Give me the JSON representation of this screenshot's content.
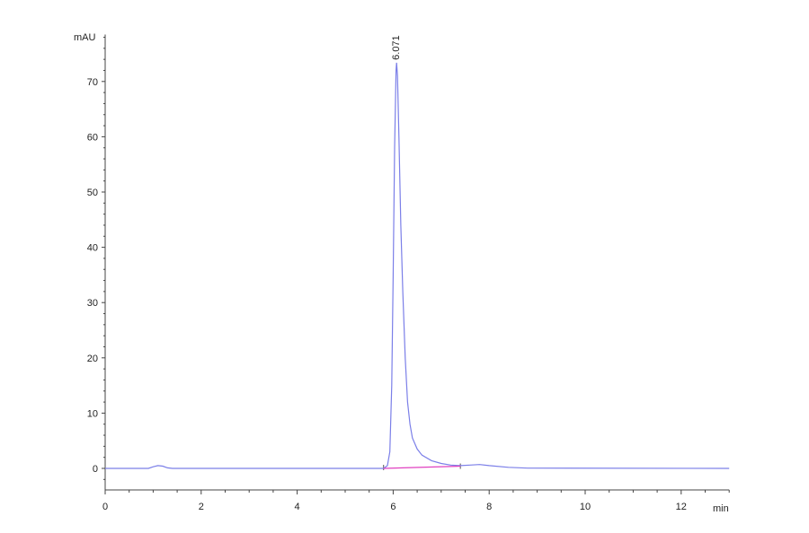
{
  "chart_data": {
    "type": "line",
    "title": "",
    "xlabel": "min",
    "ylabel": "mAU",
    "xlim": [
      0,
      13
    ],
    "ylim": [
      -3.9,
      78.5
    ],
    "x_ticks": [
      0,
      2,
      4,
      6,
      8,
      10,
      12
    ],
    "y_ticks": [
      0,
      10,
      20,
      30,
      40,
      50,
      60,
      70
    ],
    "grid": false,
    "legend": "none",
    "colors": {
      "trace": "#7b7fe8",
      "baseline": "#e040c0",
      "axis": "#444444"
    },
    "peak_annotations": [
      {
        "x": 6.071,
        "y": 73.4,
        "label": "6.071"
      }
    ],
    "integration_baseline": {
      "x": [
        5.8,
        7.4
      ],
      "y": [
        0,
        0.4
      ]
    },
    "series": [
      {
        "x": [
          0,
          0.9,
          1.0,
          1.1,
          1.2,
          1.3,
          1.4,
          5.8,
          5.88,
          5.93,
          5.97,
          6.0,
          6.03,
          6.06,
          6.071,
          6.09,
          6.12,
          6.16,
          6.2,
          6.25,
          6.3,
          6.35,
          6.4,
          6.5,
          6.6,
          6.8,
          7.0,
          7.2,
          7.4,
          7.6,
          7.8,
          8.0,
          8.4,
          8.8,
          13
        ],
        "y": [
          0,
          0,
          0.3,
          0.5,
          0.4,
          0.1,
          0,
          0,
          0.5,
          3,
          15,
          35,
          58,
          72,
          73.4,
          71,
          60,
          44,
          32,
          20,
          12,
          8,
          5.5,
          3.5,
          2.4,
          1.4,
          0.9,
          0.6,
          0.5,
          0.6,
          0.7,
          0.5,
          0.2,
          0.05,
          0
        ]
      }
    ]
  }
}
